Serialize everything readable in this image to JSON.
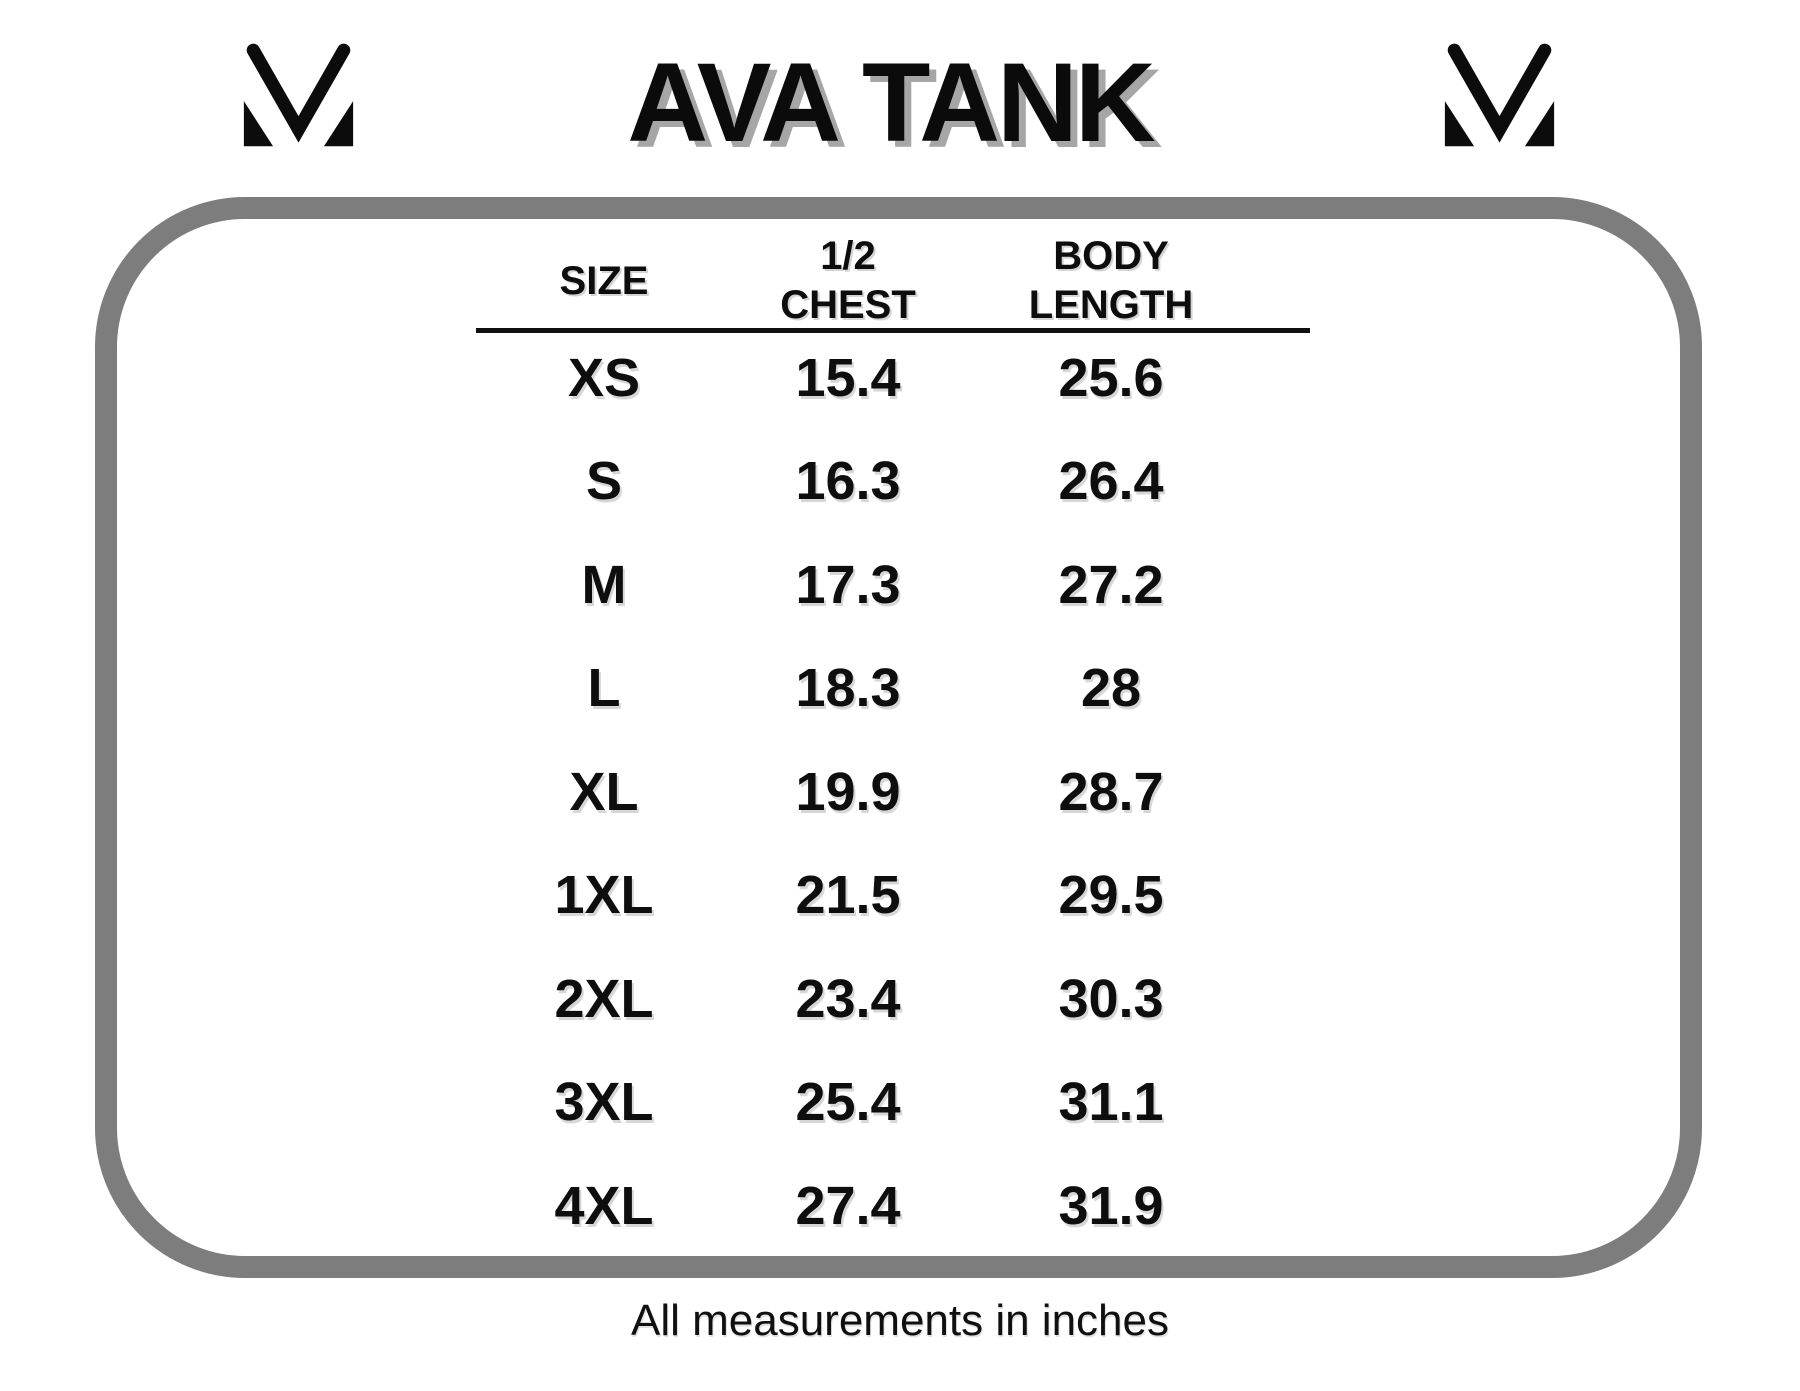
{
  "page": {
    "background": "#ffffff",
    "logo": {
      "name": "mv-monogram",
      "color": "#0c0c0c"
    }
  },
  "chart_data": {
    "type": "table",
    "title": "AVA TANK",
    "columns": [
      "SIZE",
      "1/2 CHEST",
      "BODY LENGTH"
    ],
    "rows": [
      [
        "XS",
        "15.4",
        "25.6"
      ],
      [
        "S",
        "16.3",
        "26.4"
      ],
      [
        "M",
        "17.3",
        "27.2"
      ],
      [
        "L",
        "18.3",
        "28"
      ],
      [
        "XL",
        "19.9",
        "28.7"
      ],
      [
        "1XL",
        "21.5",
        "29.5"
      ],
      [
        "2XL",
        "23.4",
        "30.3"
      ],
      [
        "3XL",
        "25.4",
        "31.1"
      ],
      [
        "4XL",
        "27.4",
        "31.9"
      ]
    ],
    "footnote": "All measurements in inches",
    "units": "inches"
  },
  "colors": {
    "frame_border": "#7d7d7d",
    "text": "#0d0d0d",
    "title_shadow": "#a6a6a6"
  }
}
